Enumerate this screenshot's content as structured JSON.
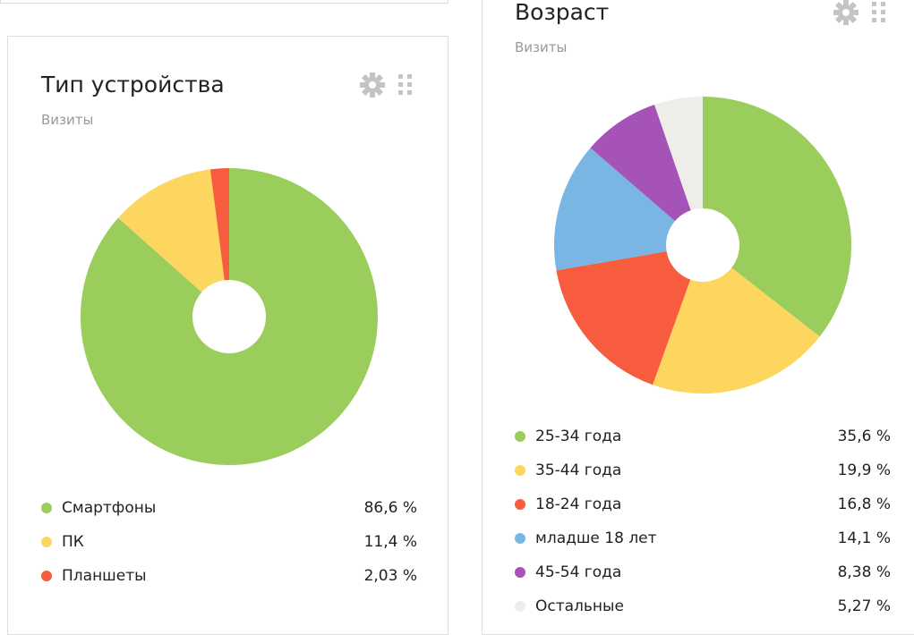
{
  "colors": {
    "border": "#dedede",
    "icon": "#c4c4c4",
    "subtitle": "#999999"
  },
  "charts": {
    "device": {
      "title": "Тип устройства",
      "subtitle": "Визиты",
      "settings_icon": "gear-icon",
      "drag_icon": "drag-handle-icon"
    },
    "age": {
      "title": "Возраст",
      "subtitle": "Визиты",
      "settings_icon": "gear-icon",
      "drag_icon": "drag-handle-icon"
    }
  },
  "chart_data": [
    {
      "type": "pie",
      "title": "Тип устройства",
      "subtitle": "Визиты",
      "legend_position": "bottom",
      "categories": [
        "Смартфоны",
        "ПК",
        "Планшеты"
      ],
      "values": [
        86.6,
        11.4,
        2.03
      ],
      "value_labels": [
        "86,6 %",
        "11,4 %",
        "2,03 %"
      ],
      "colors": [
        "#9acd5c",
        "#fcd65e",
        "#f65c3d"
      ]
    },
    {
      "type": "pie",
      "title": "Возраст",
      "subtitle": "Визиты",
      "legend_position": "bottom",
      "categories": [
        "25-34 года",
        "35-44 года",
        "18-24 года",
        "младше 18 лет",
        "45-54 года",
        "Остальные"
      ],
      "values": [
        35.6,
        19.9,
        16.8,
        14.1,
        8.38,
        5.27
      ],
      "value_labels": [
        "35,6 %",
        "19,9 %",
        "16,8 %",
        "14,1 %",
        "8,38 %",
        "5,27 %"
      ],
      "colors": [
        "#9acd5c",
        "#fcd65e",
        "#f65c3d",
        "#7ab6e4",
        "#a653b8",
        "#efedea"
      ]
    }
  ]
}
